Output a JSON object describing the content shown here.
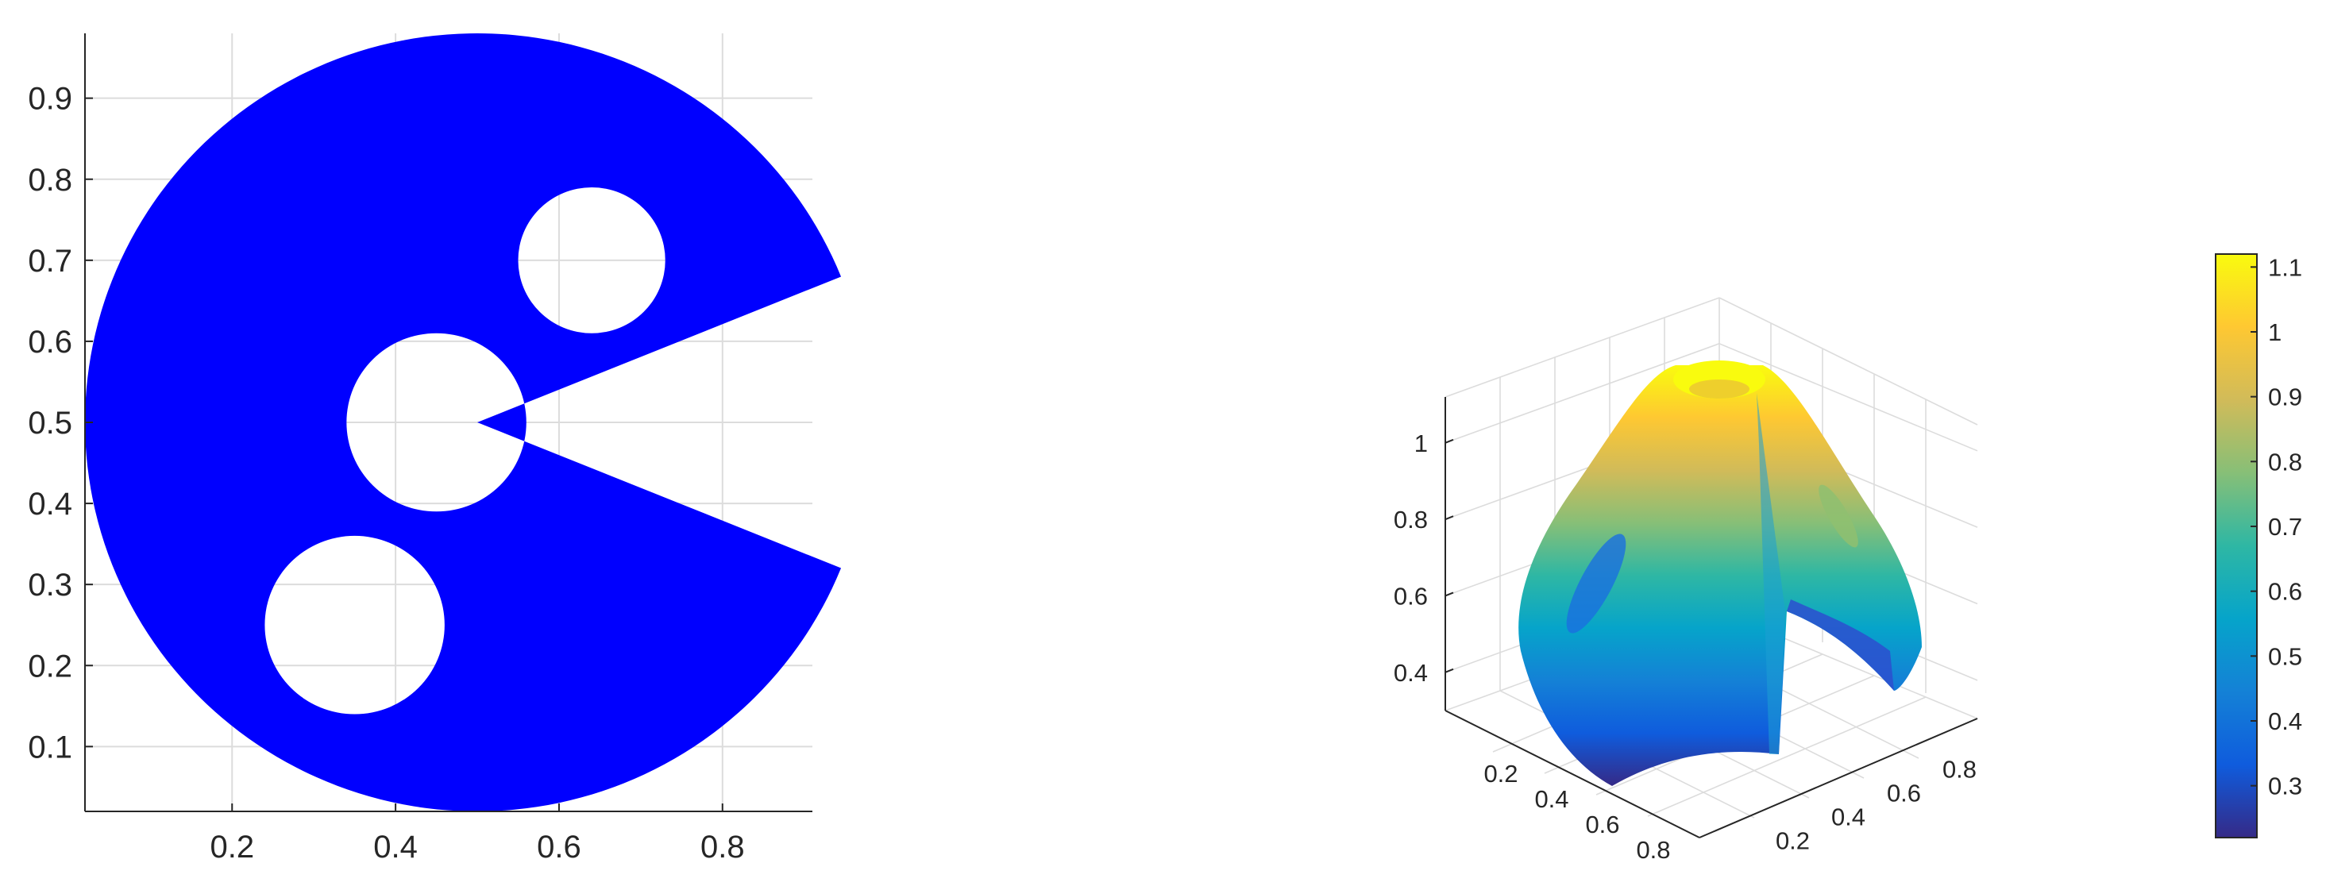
{
  "figure": {
    "background": "#ffffff",
    "axis_color": "#262626",
    "grid_color": "#dcdcdc"
  },
  "chart_data": [
    {
      "type": "scatter",
      "marker_color": "#0000ff",
      "description_kind": "point-cloud domain",
      "xlim": [
        0.02,
        0.91
      ],
      "ylim": [
        0.02,
        0.98
      ],
      "xticks": [
        0.2,
        0.4,
        0.6,
        0.8
      ],
      "yticks": [
        0.1,
        0.2,
        0.3,
        0.4,
        0.5,
        0.6,
        0.7,
        0.8,
        0.9
      ],
      "grid": true,
      "domain": {
        "outer_circle": {
          "center": [
            0.5,
            0.5
          ],
          "radius": 0.48
        },
        "wedge_cutout": {
          "apex": [
            0.5,
            0.5
          ],
          "from_deg": -22,
          "to_deg": 22
        },
        "holes": [
          {
            "center": [
              0.35,
              0.25
            ],
            "radius": 0.11
          },
          {
            "center": [
              0.45,
              0.5
            ],
            "radius": 0.11
          },
          {
            "center": [
              0.64,
              0.7
            ],
            "radius": 0.09
          }
        ]
      }
    },
    {
      "type": "surface",
      "colormap": "parula",
      "x_ticks": [
        0.2,
        0.4,
        0.6,
        0.8
      ],
      "y_ticks": [
        0.2,
        0.4,
        0.6,
        0.8
      ],
      "z_ticks": [
        0.4,
        0.6,
        0.8,
        1
      ],
      "zlim": [
        0.3,
        1.12
      ],
      "grid": true,
      "colorbar": {
        "ticks": [
          0.3,
          0.4,
          0.5,
          0.6,
          0.7,
          0.8,
          0.9,
          1,
          1.1
        ],
        "range": [
          0.22,
          1.12
        ],
        "colors": [
          "#352a87",
          "#0f5cdd",
          "#1481d6",
          "#06a4ca",
          "#2eb7a4",
          "#87bf77",
          "#d1bb59",
          "#fec832",
          "#f9fb0e"
        ]
      }
    }
  ]
}
